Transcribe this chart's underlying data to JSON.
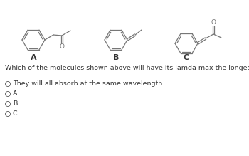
{
  "bg_color": "#ffffff",
  "question_text": "Which of the molecules shown above will have its lamda max the longest wavelength?",
  "label_A": "A",
  "label_B": "B",
  "label_C": "C",
  "answer_options": [
    "They will all absorb at the same wavelength",
    "A",
    "B",
    "C"
  ],
  "structure_color": "#777777",
  "text_color": "#333333",
  "radio_color": "#555555",
  "divider_color": "#cccccc",
  "font_size_labels": 8,
  "font_size_question": 6.8,
  "font_size_options": 6.8,
  "font_size_atom": 6.5
}
